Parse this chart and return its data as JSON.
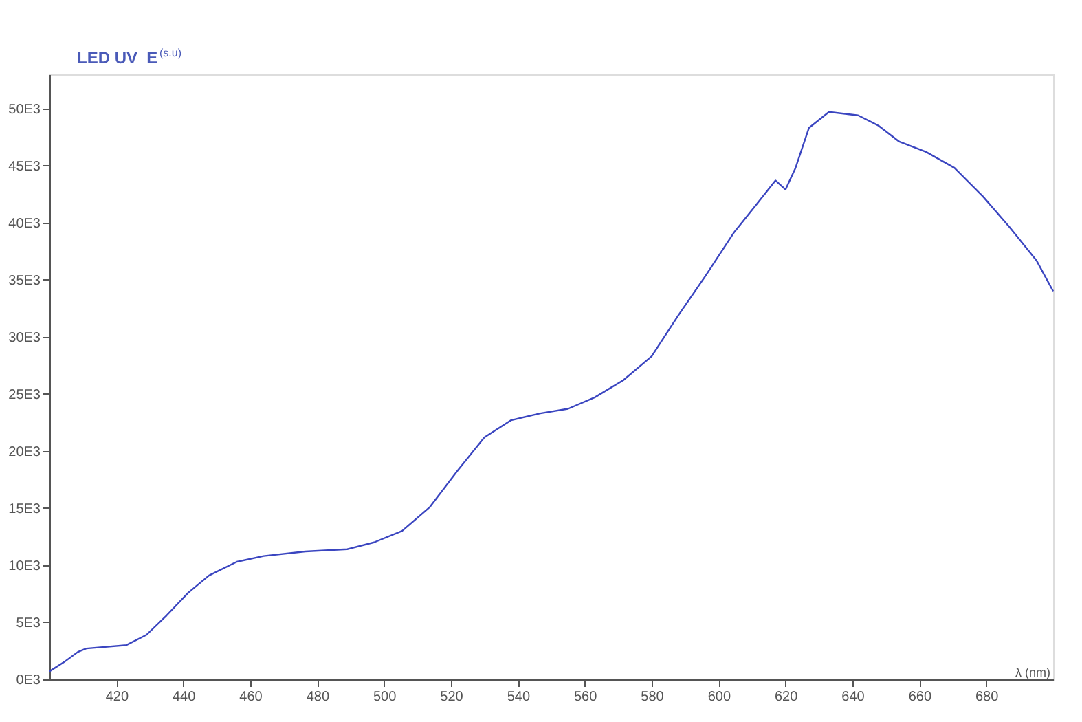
{
  "chart_data": {
    "type": "line",
    "title": "LED UV_E",
    "ylabel": "(s.u)",
    "xlabel": "λ (nm)",
    "x": [
      400,
      404.3,
      408.5,
      411,
      423,
      429,
      435,
      441.5,
      447.7,
      456,
      464,
      476.5,
      489,
      497,
      505.4,
      513.7,
      522,
      530,
      538,
      546.7,
      555,
      563,
      571.5,
      580,
      588,
      596,
      604.5,
      610.8,
      617,
      620,
      623,
      627,
      633,
      641.7,
      647.8,
      654,
      662,
      670.5,
      679,
      687,
      695,
      700
    ],
    "series": [
      {
        "color": "#3a45c0",
        "values": [
          700,
          1500,
          2400,
          2700,
          3000,
          3900,
          5600,
          7600,
          9100,
          10300,
          10800,
          11200,
          11400,
          12000,
          13000,
          15100,
          18300,
          21200,
          22700,
          23300,
          23700,
          24700,
          26200,
          28300,
          31900,
          35300,
          39100,
          41400,
          43700,
          42900,
          44800,
          48300,
          49700,
          49400,
          48500,
          47100,
          46200,
          44800,
          42300,
          39600,
          36700,
          34000
        ]
      }
    ],
    "xlim": [
      400,
      700
    ],
    "xticks": [
      420,
      440,
      460,
      480,
      500,
      520,
      540,
      560,
      580,
      600,
      620,
      640,
      660,
      680
    ],
    "ylim": [
      0,
      53000
    ],
    "yticks": [
      {
        "value": 0,
        "label": "0E3"
      },
      {
        "value": 5000,
        "label": "5E3"
      },
      {
        "value": 10000,
        "label": "10E3"
      },
      {
        "value": 15000,
        "label": "15E3"
      },
      {
        "value": 20000,
        "label": "20E3"
      },
      {
        "value": 25000,
        "label": "25E3"
      },
      {
        "value": 30000,
        "label": "30E3"
      },
      {
        "value": 35000,
        "label": "35E3"
      },
      {
        "value": 40000,
        "label": "40E3"
      },
      {
        "value": 45000,
        "label": "45E3"
      },
      {
        "value": 50000,
        "label": "50E3"
      }
    ],
    "grid": false,
    "marker": "none",
    "line_style": "solid"
  }
}
